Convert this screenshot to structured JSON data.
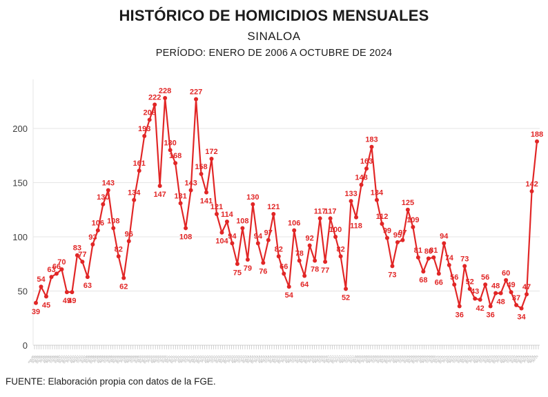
{
  "header": {
    "title": "HISTÓRICO DE HOMICIDIOS MENSUALES",
    "subtitle": "SINALOA",
    "period": "PERÍODO: ENERO DE 2006 A OCTUBRE DE 2024"
  },
  "footer": {
    "source": "FUENTE: Elaboración propia con datos de la FGE."
  },
  "colors": {
    "series": "#e12626",
    "value_label": "#e12626",
    "grid": "#e5e5e5",
    "axis_line": "#d2d2d2",
    "y_tick_text": "#3d3d3d",
    "x_tick_text": "#a8a8a8",
    "title_text": "#1b1b1b"
  },
  "chart_data": {
    "type": "line",
    "title": "HISTÓRICO DE HOMICIDIOS MENSUALES",
    "subtitle": "SINALOA",
    "xlabel": "",
    "ylabel": "",
    "ylim": [
      0,
      240
    ],
    "y_ticks": [
      0,
      50,
      100,
      150,
      200
    ],
    "grid": true,
    "legend": false,
    "point_labels_visible": true,
    "x_axis": {
      "unit": "month",
      "start_label": "ene-06",
      "end_label": "oct-24",
      "start_year": 2006,
      "month_count": 226,
      "month_abbrs": [
        "ene",
        "feb",
        "mar",
        "abr",
        "may",
        "jun",
        "jul",
        "ago",
        "sep",
        "oct",
        "nov",
        "dic"
      ]
    },
    "series": [
      {
        "name": "Homicidios mensuales",
        "labeled_values": [
          39,
          54,
          45,
          63,
          66,
          70,
          49,
          49,
          83,
          77,
          63,
          93,
          106,
          130,
          143,
          108,
          82,
          62,
          96,
          134,
          161,
          193,
          208,
          222,
          147,
          228,
          180,
          168,
          131,
          108,
          143,
          227,
          158,
          141,
          172,
          121,
          104,
          114,
          94,
          75,
          108,
          79,
          130,
          94,
          76,
          97,
          121,
          82,
          66,
          54,
          106,
          78,
          64,
          92,
          78,
          117,
          77,
          117,
          100,
          82,
          52,
          133,
          118,
          148,
          163,
          183,
          134,
          112,
          99,
          73,
          95,
          97,
          125,
          109,
          81,
          68,
          80,
          81,
          66,
          94,
          74,
          56,
          36,
          73,
          52,
          43,
          42,
          56,
          36,
          48,
          48,
          60,
          49,
          37,
          34,
          47,
          142,
          188
        ]
      }
    ]
  }
}
